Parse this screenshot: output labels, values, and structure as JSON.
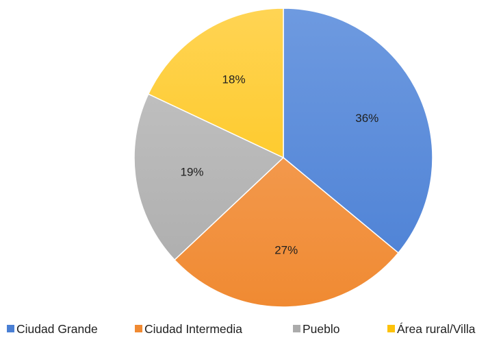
{
  "chart_data": {
    "type": "pie",
    "title": "",
    "start_angle_deg": 0,
    "direction": "clockwise",
    "legend_position": "bottom",
    "slices": [
      {
        "label": "Ciudad Grande",
        "value": 36,
        "display": "36%",
        "color": "#4A7FD4",
        "highlight": "#6E9AE0"
      },
      {
        "label": "Ciudad Intermedia",
        "value": 27,
        "display": "27%",
        "color": "#F08A32",
        "highlight": "#F6A766"
      },
      {
        "label": "Pueblo",
        "value": 19,
        "display": "19%",
        "color": "#ABABAB",
        "highlight": "#C6C6C6"
      },
      {
        "label": "Área rural/Villa",
        "value": 18,
        "display": "18%",
        "color": "#FDC20A",
        "highlight": "#FFD454"
      }
    ]
  }
}
